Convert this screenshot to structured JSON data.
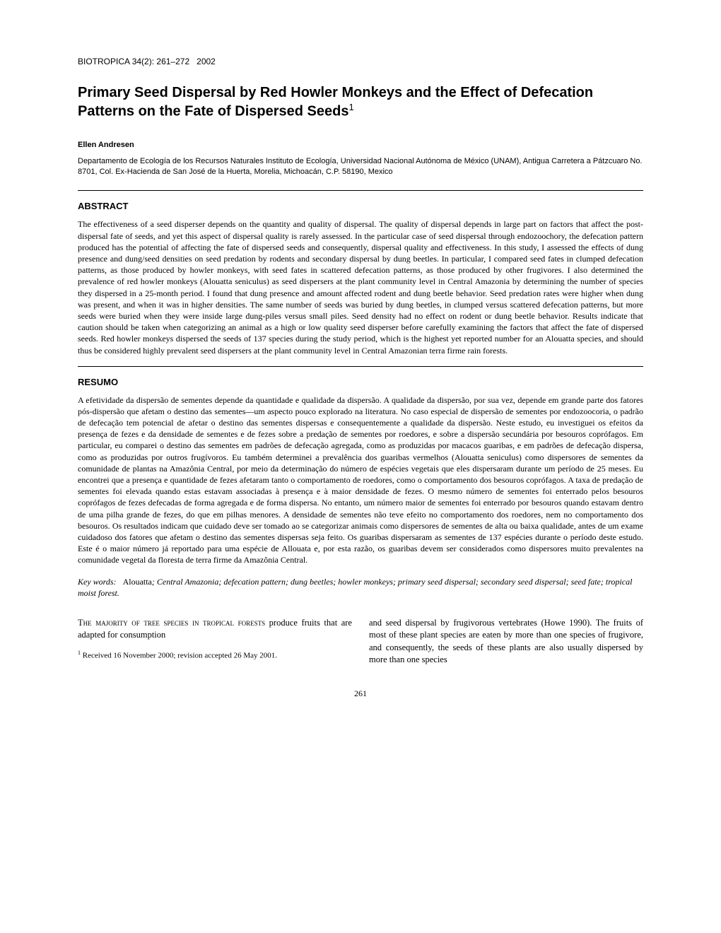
{
  "journal": {
    "name": "BIOTROPICA",
    "volume": "34(2):",
    "pages": "261–272",
    "year": "2002"
  },
  "title": "Primary Seed Dispersal by Red Howler Monkeys and the Effect of Defecation Patterns on the Fate of Dispersed Seeds",
  "title_superscript": "1",
  "author": "Ellen Andresen",
  "affiliation": "Departamento de Ecología de los Recursos Naturales Instituto de Ecología, Universidad Nacional Autónoma de México (UNAM), Antigua Carretera a Pátzcuaro No. 8701, Col. Ex-Hacienda de San José de la Huerta, Morelia, Michoacán, C.P. 58190, Mexico",
  "abstract_heading": "ABSTRACT",
  "abstract_text": "The effectiveness of a seed disperser depends on the quantity and quality of dispersal. The quality of dispersal depends in large part on factors that affect the post-dispersal fate of seeds, and yet this aspect of dispersal quality is rarely assessed. In the particular case of seed dispersal through endozoochory, the defecation pattern produced has the potential of affecting the fate of dispersed seeds and consequently, dispersal quality and effectiveness. In this study, I assessed the effects of dung presence and dung/seed densities on seed predation by rodents and secondary dispersal by dung beetles. In particular, I compared seed fates in clumped defecation patterns, as those produced by howler monkeys, with seed fates in scattered defecation patterns, as those produced by other frugivores. I also determined the prevalence of red howler monkeys (Alouatta seniculus) as seed dispersers at the plant community level in Central Amazonia by determining the number of species they dispersed in a 25-month period. I found that dung presence and amount affected rodent and dung beetle behavior. Seed predation rates were higher when dung was present, and when it was in higher densities. The same number of seeds was buried by dung beetles, in clumped versus scattered defecation patterns, but more seeds were buried when they were inside large dung-piles versus small piles. Seed density had no effect on rodent or dung beetle behavior. Results indicate that caution should be taken when categorizing an animal as a high or low quality seed disperser before carefully examining the factors that affect the fate of dispersed seeds. Red howler monkeys dispersed the seeds of 137 species during the study period, which is the highest yet reported number for an Alouatta species, and should thus be considered highly prevalent seed dispersers at the plant community level in Central Amazonian terra firme rain forests.",
  "resumo_heading": "RESUMO",
  "resumo_text": "A efetividade da dispersão de sementes depende da quantidade e qualidade da dispersão. A qualidade da dispersão, por sua vez, depende em grande parte dos fatores pós-dispersão que afetam o destino das sementes—um aspecto pouco explorado na literatura. No caso especial de dispersão de sementes por endozoocoria, o padrão de defecação tem potencial de afetar o destino das sementes dispersas e consequentemente a qualidade da dispersão. Neste estudo, eu investiguei os efeitos da presença de fezes e da densidade de sementes e de fezes sobre a predação de sementes por roedores, e sobre a dispersão secundária por besouros coprófagos. Em particular, eu comparei o destino das sementes em padrões de defecação agregada, como as produzidas por macacos guaribas, e em padrões de defecação dispersa, como as produzidas por outros frugívoros. Eu também determinei a prevalência dos guaribas vermelhos (Alouatta seniculus) como dispersores de sementes da comunidade de plantas na Amazônia Central, por meio da determinação do número de espécies vegetais que eles dispersaram durante um período de 25 meses. Eu encontrei que a presença e quantidade de fezes afetaram tanto o comportamento de roedores, como o comportamento dos besouros coprófagos. A taxa de predação de sementes foi elevada quando estas estavam associadas à presença e à maior densidade de fezes. O mesmo número de sementes foi enterrado pelos besouros coprófagos de fezes defecadas de forma agregada e de forma dispersa. No entanto, um número maior de sementes foi enterrado por besouros quando estavam dentro de uma pilha grande de fezes, do que em pilhas menores. A densidade de sementes não teve efeito no comportamento dos roedores, nem no comportamento dos besouros. Os resultados indicam que cuidado deve ser tomado ao se categorizar animais como dispersores de sementes de alta ou baixa qualidade, antes de um exame cuidadoso dos fatores que afetam o destino das sementes dispersas seja feito. Os guaribas dispersaram as sementes de 137 espécies durante o período deste estudo. Este é o maior número já reportado para uma espécie de Allouata e, por esta razão, os guaribas devem ser considerados como dispersores muito prevalentes na comunidade vegetal da floresta de terra firme da Amazônia Central.",
  "keywords_label": "Key words:",
  "keywords_text": "Alouatta; Central Amazonia; defecation pattern; dung beetles; howler monkeys; primary seed dispersal; secondary seed dispersal; seed fate; tropical moist forest.",
  "body_col1_lead": "The majority of tree species in tropical forests",
  "body_col1_rest": " produce fruits that are adapted for consumption",
  "body_col2": "and seed dispersal by frugivorous vertebrates (Howe 1990). The fruits of most of these plant species are eaten by more than one species of frugivore, and consequently, the seeds of these plants are also usually dispersed by more than one species",
  "footnote": "Received 16 November 2000; revision accepted 26 May 2001.",
  "footnote_marker": "1",
  "page_number": "261"
}
